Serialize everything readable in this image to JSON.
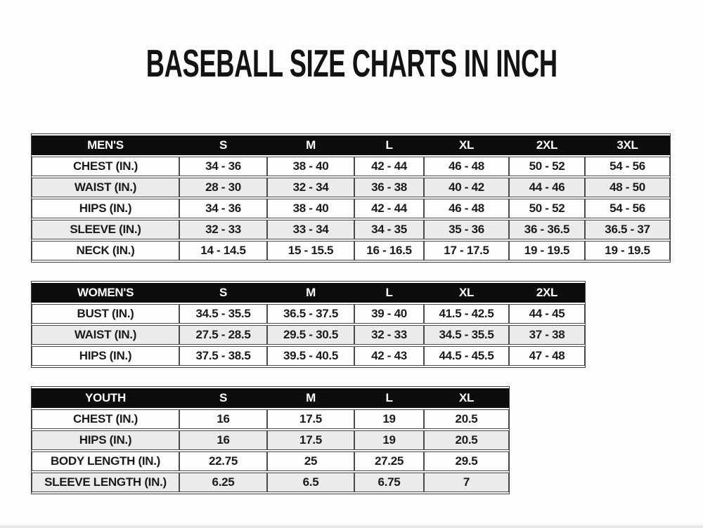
{
  "title": "BASEBALL SIZE CHARTS IN INCH",
  "tables": [
    {
      "name": "mens",
      "header": [
        "MEN'S",
        "S",
        "M",
        "L",
        "XL",
        "2XL",
        "3XL"
      ],
      "rows": [
        [
          "CHEST (IN.)",
          "34 - 36",
          "38 - 40",
          "42 - 44",
          "46 - 48",
          "50 - 52",
          "54 - 56"
        ],
        [
          "WAIST (IN.)",
          "28 - 30",
          "32 - 34",
          "36 - 38",
          "40 - 42",
          "44 - 46",
          "48 - 50"
        ],
        [
          "HIPS (IN.)",
          "34 - 36",
          "38 - 40",
          "42 - 44",
          "46 - 48",
          "50 - 52",
          "54 - 56"
        ],
        [
          "SLEEVE (IN.)",
          "32 - 33",
          "33 - 34",
          "34 - 35",
          "35 - 36",
          "36 - 36.5",
          "36.5 - 37"
        ],
        [
          "NECK (IN.)",
          "14 - 14.5",
          "15 - 15.5",
          "16 - 16.5",
          "17 - 17.5",
          "19 - 19.5",
          "19 - 19.5"
        ]
      ]
    },
    {
      "name": "womens",
      "header": [
        "WOMEN'S",
        "S",
        "M",
        "L",
        "XL",
        "2XL"
      ],
      "rows": [
        [
          "BUST (IN.)",
          "34.5 - 35.5",
          "36.5 - 37.5",
          "39 - 40",
          "41.5 - 42.5",
          "44 - 45"
        ],
        [
          "WAIST (IN.)",
          "27.5 - 28.5",
          "29.5 - 30.5",
          "32 - 33",
          "34.5 - 35.5",
          "37 - 38"
        ],
        [
          "HIPS (IN.)",
          "37.5 - 38.5",
          "39.5 - 40.5",
          "42 - 43",
          "44.5 - 45.5",
          "47 - 48"
        ]
      ]
    },
    {
      "name": "youth",
      "header": [
        "YOUTH",
        "S",
        "M",
        "L",
        "XL"
      ],
      "rows": [
        [
          "CHEST (IN.)",
          "16",
          "17.5",
          "19",
          "20.5"
        ],
        [
          "HIPS (IN.)",
          "16",
          "17.5",
          "19",
          "20.5"
        ],
        [
          "BODY LENGTH (IN.)",
          "22.75",
          "25",
          "27.25",
          "29.5"
        ],
        [
          "SLEEVE LENGTH (IN.)",
          "6.25",
          "6.5",
          "6.75",
          "7"
        ]
      ]
    }
  ],
  "colors": {
    "page_background": "#fdfdfd",
    "header_bg": "#0d0d0d",
    "header_text": "#ffffff",
    "stripe_row_bg": "#ebebeb",
    "plain_row_bg": "#fdfdfd",
    "border": "#4b4b4b",
    "text": "#1b1b1b",
    "bottom_strip": "#eae8e4"
  }
}
